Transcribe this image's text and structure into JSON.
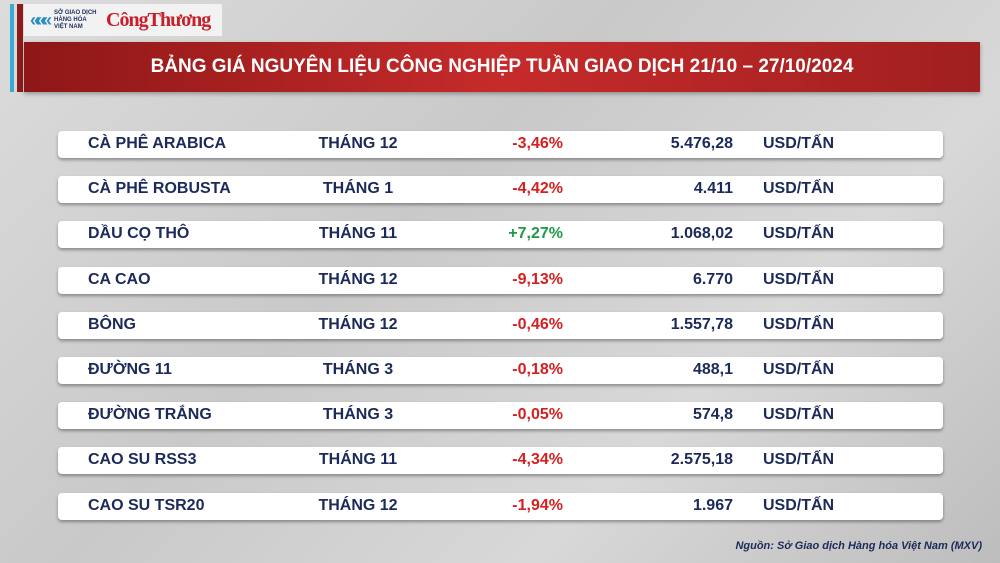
{
  "logo": {
    "org": "SỞ GIAO DỊCH HÀNG HÓA VIỆT NAM",
    "brand": "CôngThương"
  },
  "title": "BẢNG GIÁ NGUYÊN LIỆU CÔNG NGHIỆP TUẦN GIAO DỊCH 21/10 – 27/10/2024",
  "colors": {
    "negative": "#d42020",
    "positive": "#1f9a45",
    "banner": "#b52424",
    "text": "#1b2a5a"
  },
  "rows": [
    {
      "name": "CÀ PHÊ ARABICA",
      "month": "THÁNG 12",
      "change": "-3,46%",
      "price": "5.476,28",
      "unit": "USD/TẤN"
    },
    {
      "name": "CÀ PHÊ ROBUSTA",
      "month": "THÁNG 1",
      "change": "-4,42%",
      "price": "4.411",
      "unit": "USD/TẤN"
    },
    {
      "name": "DẦU CỌ THÔ",
      "month": "THÁNG 11",
      "change": "+7,27%",
      "price": "1.068,02",
      "unit": "USD/TẤN"
    },
    {
      "name": "CA CAO",
      "month": "THÁNG 12",
      "change": "-9,13%",
      "price": "6.770",
      "unit": "USD/TẤN"
    },
    {
      "name": "BÔNG",
      "month": "THÁNG 12",
      "change": "-0,46%",
      "price": "1.557,78",
      "unit": "USD/TẤN"
    },
    {
      "name": "ĐƯỜNG 11",
      "month": "THÁNG 3",
      "change": "-0,18%",
      "price": "488,1",
      "unit": "USD/TẤN"
    },
    {
      "name": "ĐƯỜNG TRẮNG",
      "month": "THÁNG 3",
      "change": "-0,05%",
      "price": "574,8",
      "unit": "USD/TẤN"
    },
    {
      "name": "CAO SU RSS3",
      "month": "THÁNG 11",
      "change": "-4,34%",
      "price": "2.575,18",
      "unit": "USD/TẤN"
    },
    {
      "name": "CAO SU TSR20",
      "month": "THÁNG 12",
      "change": "-1,94%",
      "price": "1.967",
      "unit": "USD/TẤN"
    }
  ],
  "source": "Nguồn: Sở Giao dịch Hàng hóa Việt Nam (MXV)"
}
